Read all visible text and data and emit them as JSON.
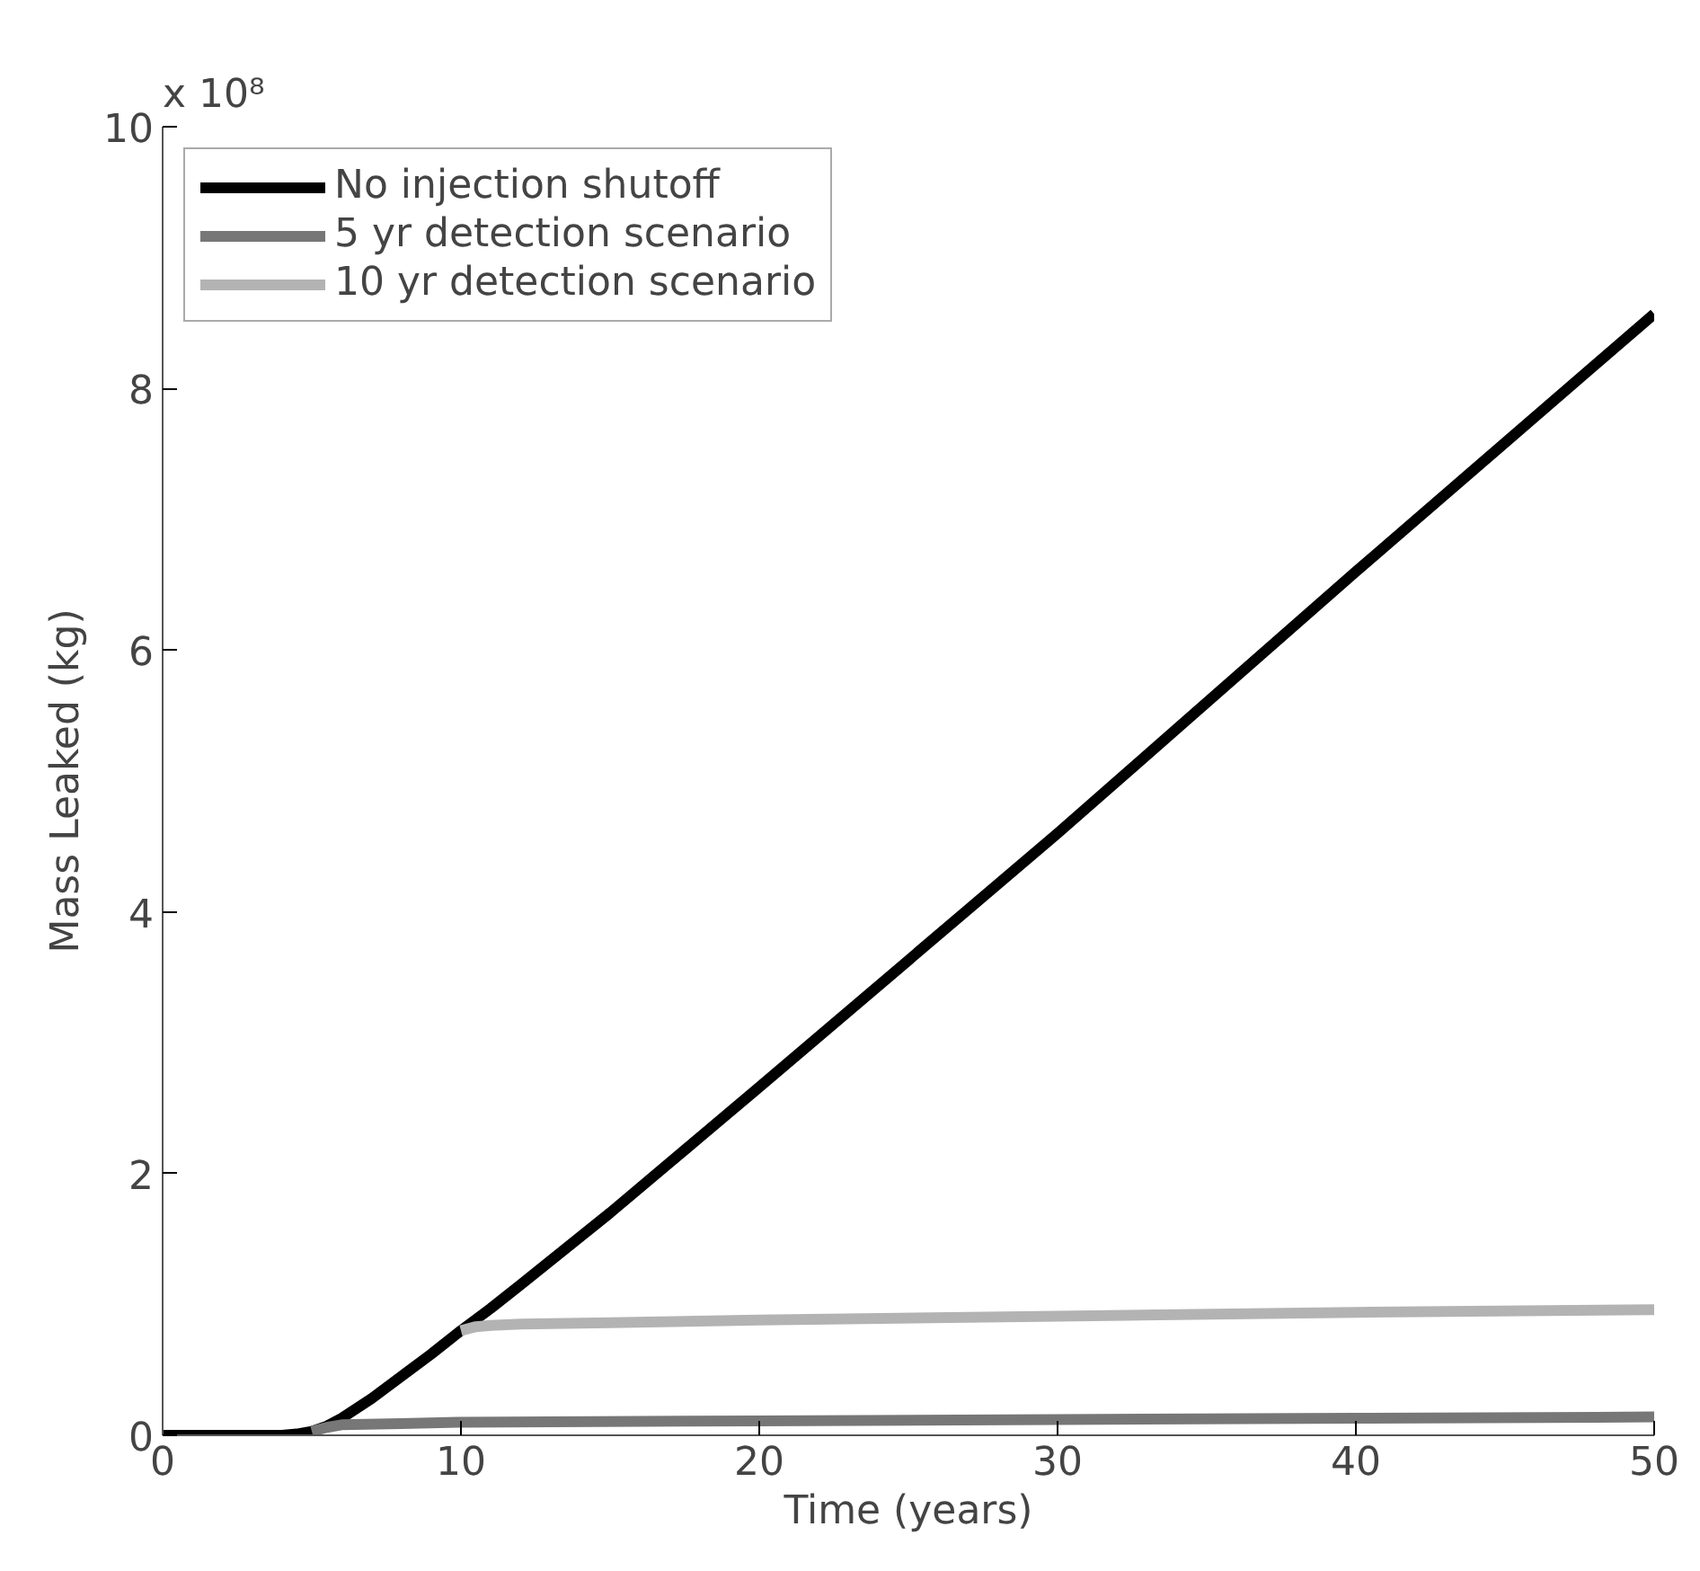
{
  "chart_data": {
    "type": "line",
    "xlabel": "Time (years)",
    "ylabel": "Mass Leaked (kg)",
    "annotations": [
      "x 10⁸"
    ],
    "xlim": [
      0,
      50
    ],
    "ylim": [
      0,
      10
    ],
    "xticks": [
      0,
      10,
      20,
      30,
      40,
      50
    ],
    "yticks": [
      0,
      2,
      4,
      6,
      8,
      10
    ],
    "grid": false,
    "legend": "top left",
    "line_style": "solid",
    "marker": "none",
    "series": [
      {
        "name": "No injection shutoff",
        "color": "#000000",
        "x": [
          0,
          2,
          4,
          4.5,
          5,
          5.5,
          6,
          7,
          8,
          9,
          10,
          11,
          12,
          15,
          20,
          30,
          40,
          50
        ],
        "values": [
          0,
          0,
          0,
          0.01,
          0.03,
          0.07,
          0.13,
          0.28,
          0.45,
          0.62,
          0.8,
          0.97,
          1.15,
          1.7,
          2.66,
          4.6,
          6.6,
          8.57
        ]
      },
      {
        "name": "5 yr detection scenario",
        "color": "#777777",
        "x": [
          5,
          5.5,
          6,
          8,
          10,
          20,
          30,
          40,
          50
        ],
        "values": [
          0.03,
          0.06,
          0.08,
          0.09,
          0.1,
          0.11,
          0.12,
          0.13,
          0.14
        ]
      },
      {
        "name": "10 yr detection scenario",
        "color": "#b3b3b3",
        "x": [
          10,
          10.5,
          11,
          12,
          15,
          20,
          30,
          40,
          50
        ],
        "values": [
          0.8,
          0.83,
          0.84,
          0.85,
          0.86,
          0.88,
          0.91,
          0.94,
          0.96
        ]
      }
    ]
  }
}
